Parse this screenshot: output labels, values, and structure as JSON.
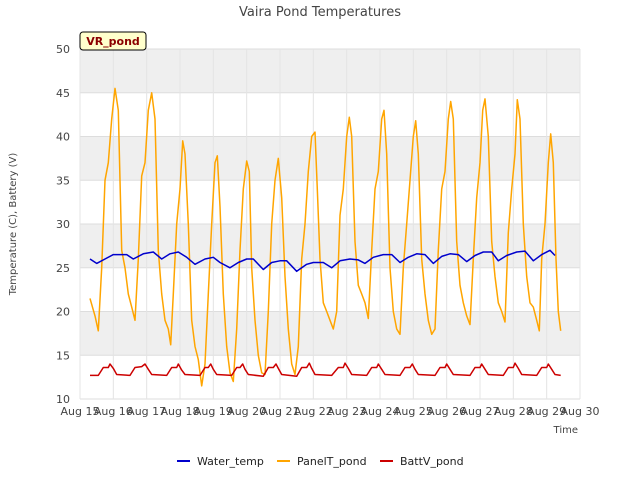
{
  "chart_data": {
    "type": "line",
    "title": "Vaira Pond Temperatures",
    "xlabel": "Time",
    "ylabel": "Temperature (C), Battery (V)",
    "station_label": "VR_pond",
    "ylim": [
      10,
      50
    ],
    "xlim": [
      15,
      30
    ],
    "y_ticks": [
      10,
      15,
      20,
      25,
      30,
      35,
      40,
      45,
      50
    ],
    "x_ticks": [
      {
        "value": 15,
        "label": "Aug 15"
      },
      {
        "value": 16,
        "label": "Aug 16"
      },
      {
        "value": 17,
        "label": "Aug 17"
      },
      {
        "value": 18,
        "label": "Aug 18"
      },
      {
        "value": 19,
        "label": "Aug 19"
      },
      {
        "value": 20,
        "label": "Aug 20"
      },
      {
        "value": 21,
        "label": "Aug 21"
      },
      {
        "value": 22,
        "label": "Aug 22"
      },
      {
        "value": 23,
        "label": "Aug 23"
      },
      {
        "value": 24,
        "label": "Aug 24"
      },
      {
        "value": 25,
        "label": "Aug 25"
      },
      {
        "value": 26,
        "label": "Aug 26"
      },
      {
        "value": 27,
        "label": "Aug 27"
      },
      {
        "value": 28,
        "label": "Aug 28"
      },
      {
        "value": 29,
        "label": "Aug 29"
      },
      {
        "value": 30,
        "label": "Aug 30"
      }
    ],
    "grid": true,
    "legend_position": "bottom",
    "series": [
      {
        "name": "Water_temp",
        "color": "#0000cc",
        "points": [
          [
            15.3,
            26.0
          ],
          [
            15.5,
            25.5
          ],
          [
            15.75,
            26.0
          ],
          [
            16.0,
            26.5
          ],
          [
            16.4,
            26.5
          ],
          [
            16.6,
            26.0
          ],
          [
            16.9,
            26.6
          ],
          [
            17.2,
            26.8
          ],
          [
            17.45,
            26.0
          ],
          [
            17.7,
            26.6
          ],
          [
            17.95,
            26.8
          ],
          [
            18.2,
            26.2
          ],
          [
            18.45,
            25.4
          ],
          [
            18.75,
            26.0
          ],
          [
            19.0,
            26.2
          ],
          [
            19.2,
            25.6
          ],
          [
            19.5,
            25.0
          ],
          [
            19.75,
            25.6
          ],
          [
            20.0,
            26.0
          ],
          [
            20.2,
            26.0
          ],
          [
            20.5,
            24.8
          ],
          [
            20.75,
            25.6
          ],
          [
            21.0,
            25.8
          ],
          [
            21.2,
            25.8
          ],
          [
            21.5,
            24.6
          ],
          [
            21.8,
            25.4
          ],
          [
            22.0,
            25.6
          ],
          [
            22.3,
            25.6
          ],
          [
            22.55,
            25.0
          ],
          [
            22.8,
            25.8
          ],
          [
            23.1,
            26.0
          ],
          [
            23.35,
            25.9
          ],
          [
            23.55,
            25.5
          ],
          [
            23.8,
            26.2
          ],
          [
            24.1,
            26.5
          ],
          [
            24.35,
            26.5
          ],
          [
            24.6,
            25.6
          ],
          [
            24.85,
            26.2
          ],
          [
            25.1,
            26.6
          ],
          [
            25.35,
            26.5
          ],
          [
            25.6,
            25.5
          ],
          [
            25.85,
            26.3
          ],
          [
            26.1,
            26.6
          ],
          [
            26.35,
            26.5
          ],
          [
            26.6,
            25.7
          ],
          [
            26.85,
            26.4
          ],
          [
            27.1,
            26.8
          ],
          [
            27.35,
            26.8
          ],
          [
            27.55,
            25.8
          ],
          [
            27.8,
            26.4
          ],
          [
            28.1,
            26.8
          ],
          [
            28.35,
            26.9
          ],
          [
            28.6,
            25.8
          ],
          [
            28.85,
            26.5
          ],
          [
            29.1,
            27.0
          ],
          [
            29.25,
            26.4
          ]
        ]
      },
      {
        "name": "PanelT_pond",
        "color": "#ffa500",
        "points": [
          [
            15.3,
            21.5
          ],
          [
            15.45,
            19.5
          ],
          [
            15.55,
            17.8
          ],
          [
            15.65,
            25.0
          ],
          [
            15.75,
            35.0
          ],
          [
            15.85,
            37.0
          ],
          [
            15.95,
            42.0
          ],
          [
            16.05,
            45.5
          ],
          [
            16.15,
            43.0
          ],
          [
            16.25,
            27.0
          ],
          [
            16.35,
            25.0
          ],
          [
            16.45,
            22.0
          ],
          [
            16.55,
            20.5
          ],
          [
            16.65,
            19.0
          ],
          [
            16.75,
            26.0
          ],
          [
            16.85,
            35.5
          ],
          [
            16.95,
            37.0
          ],
          [
            17.05,
            43.0
          ],
          [
            17.15,
            45.0
          ],
          [
            17.25,
            42.0
          ],
          [
            17.35,
            27.0
          ],
          [
            17.45,
            22.0
          ],
          [
            17.55,
            19.0
          ],
          [
            17.65,
            18.0
          ],
          [
            17.72,
            16.2
          ],
          [
            17.8,
            22.0
          ],
          [
            17.9,
            30.0
          ],
          [
            18.0,
            34.0
          ],
          [
            18.08,
            39.5
          ],
          [
            18.15,
            38.0
          ],
          [
            18.25,
            30.0
          ],
          [
            18.35,
            19.0
          ],
          [
            18.45,
            16.0
          ],
          [
            18.55,
            14.5
          ],
          [
            18.65,
            11.5
          ],
          [
            18.75,
            14.0
          ],
          [
            18.85,
            22.0
          ],
          [
            18.95,
            30.0
          ],
          [
            19.05,
            37.0
          ],
          [
            19.12,
            37.8
          ],
          [
            19.2,
            32.0
          ],
          [
            19.3,
            22.0
          ],
          [
            19.4,
            16.0
          ],
          [
            19.5,
            13.0
          ],
          [
            19.6,
            12.0
          ],
          [
            19.7,
            18.0
          ],
          [
            19.8,
            27.0
          ],
          [
            19.9,
            34.0
          ],
          [
            20.0,
            37.2
          ],
          [
            20.08,
            36.0
          ],
          [
            20.15,
            25.0
          ],
          [
            20.25,
            19.0
          ],
          [
            20.35,
            15.0
          ],
          [
            20.45,
            13.0
          ],
          [
            20.55,
            12.8
          ],
          [
            20.65,
            20.0
          ],
          [
            20.75,
            30.0
          ],
          [
            20.85,
            35.0
          ],
          [
            20.95,
            37.5
          ],
          [
            21.05,
            33.0
          ],
          [
            21.15,
            24.0
          ],
          [
            21.25,
            18.0
          ],
          [
            21.35,
            14.0
          ],
          [
            21.45,
            12.8
          ],
          [
            21.55,
            16.0
          ],
          [
            21.65,
            26.0
          ],
          [
            21.75,
            30.0
          ],
          [
            21.85,
            36.0
          ],
          [
            21.95,
            40.0
          ],
          [
            22.05,
            40.5
          ],
          [
            22.12,
            34.0
          ],
          [
            22.2,
            26.0
          ],
          [
            22.3,
            21.0
          ],
          [
            22.4,
            20.0
          ],
          [
            22.5,
            19.0
          ],
          [
            22.6,
            18.0
          ],
          [
            22.7,
            20.0
          ],
          [
            22.8,
            31.0
          ],
          [
            22.9,
            34.0
          ],
          [
            23.0,
            40.0
          ],
          [
            23.08,
            42.2
          ],
          [
            23.15,
            40.0
          ],
          [
            23.25,
            28.0
          ],
          [
            23.35,
            23.0
          ],
          [
            23.45,
            22.0
          ],
          [
            23.55,
            21.0
          ],
          [
            23.65,
            19.2
          ],
          [
            23.75,
            27.0
          ],
          [
            23.85,
            34.0
          ],
          [
            23.95,
            36.0
          ],
          [
            24.05,
            42.0
          ],
          [
            24.12,
            43.0
          ],
          [
            24.2,
            38.0
          ],
          [
            24.3,
            25.0
          ],
          [
            24.4,
            20.0
          ],
          [
            24.5,
            18.0
          ],
          [
            24.6,
            17.4
          ],
          [
            24.7,
            25.0
          ],
          [
            24.8,
            30.0
          ],
          [
            24.9,
            35.0
          ],
          [
            25.0,
            40.0
          ],
          [
            25.07,
            41.8
          ],
          [
            25.15,
            38.0
          ],
          [
            25.25,
            26.0
          ],
          [
            25.35,
            22.0
          ],
          [
            25.45,
            19.0
          ],
          [
            25.55,
            17.4
          ],
          [
            25.65,
            18.0
          ],
          [
            25.75,
            27.0
          ],
          [
            25.85,
            34.0
          ],
          [
            25.95,
            36.0
          ],
          [
            26.05,
            42.0
          ],
          [
            26.12,
            44.0
          ],
          [
            26.2,
            42.0
          ],
          [
            26.3,
            28.0
          ],
          [
            26.4,
            23.0
          ],
          [
            26.5,
            21.0
          ],
          [
            26.6,
            19.5
          ],
          [
            26.7,
            18.5
          ],
          [
            26.8,
            26.0
          ],
          [
            26.9,
            33.0
          ],
          [
            27.0,
            37.0
          ],
          [
            27.08,
            43.0
          ],
          [
            27.15,
            44.3
          ],
          [
            27.25,
            40.0
          ],
          [
            27.35,
            28.0
          ],
          [
            27.45,
            24.0
          ],
          [
            27.55,
            21.0
          ],
          [
            27.65,
            20.0
          ],
          [
            27.75,
            18.8
          ],
          [
            27.85,
            29.0
          ],
          [
            27.95,
            34.0
          ],
          [
            28.05,
            38.0
          ],
          [
            28.12,
            44.2
          ],
          [
            28.2,
            42.0
          ],
          [
            28.3,
            30.0
          ],
          [
            28.4,
            24.0
          ],
          [
            28.5,
            21.0
          ],
          [
            28.6,
            20.5
          ],
          [
            28.7,
            19.0
          ],
          [
            28.78,
            17.8
          ],
          [
            28.85,
            26.0
          ],
          [
            28.95,
            30.0
          ],
          [
            29.05,
            37.0
          ],
          [
            29.12,
            40.3
          ],
          [
            29.2,
            37.0
          ],
          [
            29.28,
            26.0
          ],
          [
            29.35,
            20.0
          ],
          [
            29.42,
            17.8
          ]
        ]
      },
      {
        "name": "BattV_pond",
        "color": "#cc0000",
        "points": [
          [
            15.3,
            12.7
          ],
          [
            15.55,
            12.7
          ],
          [
            15.7,
            13.6
          ],
          [
            15.85,
            13.6
          ],
          [
            15.9,
            14.0
          ],
          [
            16.0,
            13.5
          ],
          [
            16.1,
            12.8
          ],
          [
            16.5,
            12.7
          ],
          [
            16.65,
            13.6
          ],
          [
            16.85,
            13.7
          ],
          [
            16.95,
            14.0
          ],
          [
            17.05,
            13.4
          ],
          [
            17.15,
            12.8
          ],
          [
            17.6,
            12.7
          ],
          [
            17.75,
            13.6
          ],
          [
            17.9,
            13.6
          ],
          [
            17.95,
            14.0
          ],
          [
            18.05,
            13.3
          ],
          [
            18.15,
            12.8
          ],
          [
            18.6,
            12.7
          ],
          [
            18.75,
            13.6
          ],
          [
            18.85,
            13.6
          ],
          [
            18.92,
            14.0
          ],
          [
            19.0,
            13.4
          ],
          [
            19.1,
            12.8
          ],
          [
            19.55,
            12.7
          ],
          [
            19.7,
            13.6
          ],
          [
            19.8,
            13.6
          ],
          [
            19.88,
            14.0
          ],
          [
            19.95,
            13.4
          ],
          [
            20.05,
            12.8
          ],
          [
            20.5,
            12.6
          ],
          [
            20.65,
            13.6
          ],
          [
            20.8,
            13.6
          ],
          [
            20.88,
            14.0
          ],
          [
            20.95,
            13.5
          ],
          [
            21.05,
            12.8
          ],
          [
            21.5,
            12.6
          ],
          [
            21.65,
            13.6
          ],
          [
            21.8,
            13.6
          ],
          [
            21.88,
            14.1
          ],
          [
            21.95,
            13.5
          ],
          [
            22.05,
            12.8
          ],
          [
            22.55,
            12.7
          ],
          [
            22.75,
            13.6
          ],
          [
            22.9,
            13.6
          ],
          [
            22.95,
            14.1
          ],
          [
            23.05,
            13.5
          ],
          [
            23.15,
            12.8
          ],
          [
            23.6,
            12.7
          ],
          [
            23.75,
            13.6
          ],
          [
            23.9,
            13.6
          ],
          [
            23.95,
            14.0
          ],
          [
            24.05,
            13.4
          ],
          [
            24.15,
            12.8
          ],
          [
            24.6,
            12.7
          ],
          [
            24.75,
            13.6
          ],
          [
            24.9,
            13.6
          ],
          [
            24.97,
            14.0
          ],
          [
            25.05,
            13.4
          ],
          [
            25.15,
            12.8
          ],
          [
            25.65,
            12.7
          ],
          [
            25.8,
            13.6
          ],
          [
            25.95,
            13.6
          ],
          [
            26.0,
            14.0
          ],
          [
            26.1,
            13.4
          ],
          [
            26.2,
            12.8
          ],
          [
            26.7,
            12.7
          ],
          [
            26.85,
            13.6
          ],
          [
            27.0,
            13.6
          ],
          [
            27.05,
            14.0
          ],
          [
            27.15,
            13.4
          ],
          [
            27.25,
            12.8
          ],
          [
            27.7,
            12.7
          ],
          [
            27.85,
            13.6
          ],
          [
            28.0,
            13.6
          ],
          [
            28.05,
            14.1
          ],
          [
            28.15,
            13.5
          ],
          [
            28.25,
            12.8
          ],
          [
            28.7,
            12.7
          ],
          [
            28.85,
            13.6
          ],
          [
            29.0,
            13.6
          ],
          [
            29.05,
            14.0
          ],
          [
            29.15,
            13.4
          ],
          [
            29.25,
            12.8
          ],
          [
            29.42,
            12.7
          ]
        ]
      }
    ]
  }
}
